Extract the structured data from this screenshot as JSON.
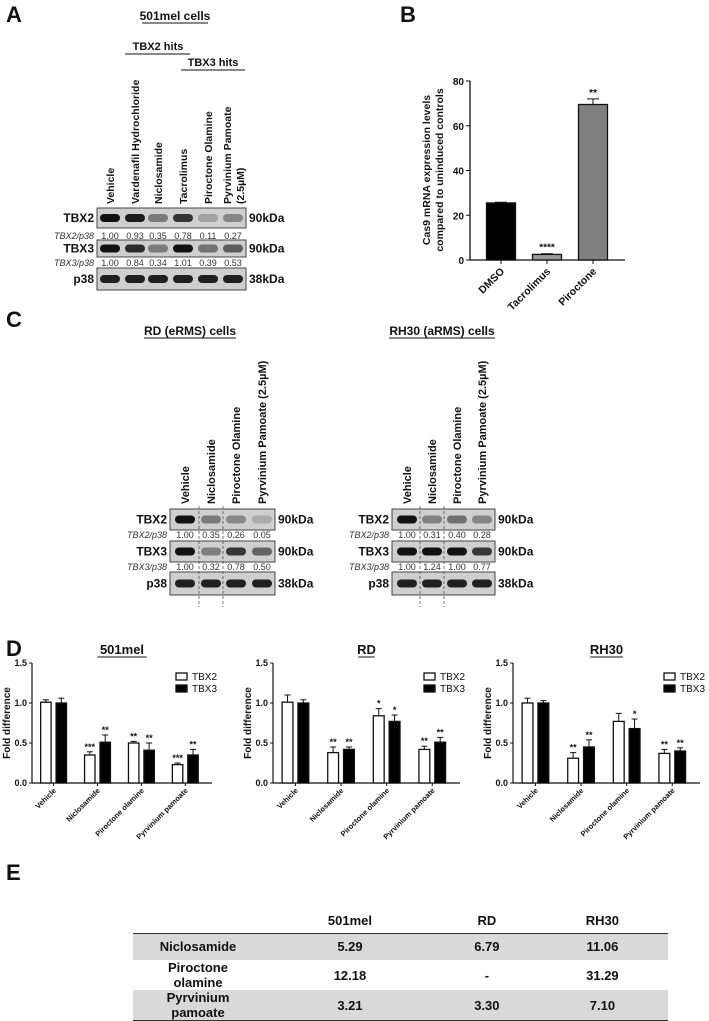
{
  "panel_labels": {
    "a": "A",
    "b": "B",
    "c": "C",
    "d": "D",
    "e": "E"
  },
  "panel_a": {
    "title": "501mel cells",
    "group_labels": [
      "TBX2 hits",
      "TBX3 hits"
    ],
    "lanes": [
      [
        "Vehicle"
      ],
      [
        "Vardenafil Hydrochloride"
      ],
      [
        "Niclosamide"
      ],
      [
        "Tacrolimus"
      ],
      [
        "Piroctone Olamine"
      ],
      [
        "Pyrvinium Pamoate",
        "(2.5µM)"
      ]
    ],
    "rows": [
      {
        "protein": "TBX2",
        "kda": "90kDa",
        "ratio_label": "TBX2/p38",
        "ratios": [
          "1.00",
          "0.93",
          "0.35",
          "0.78",
          "0.11",
          "0.27"
        ]
      },
      {
        "protein": "TBX3",
        "kda": "90kDa",
        "ratio_label": "TBX3/p38",
        "ratios": [
          "1.00",
          "0.84",
          "0.34",
          "1.01",
          "0.39",
          "0.53"
        ]
      },
      {
        "protein": "p38",
        "kda": "38kDa"
      }
    ]
  },
  "panel_c": {
    "blots": [
      {
        "title": "RD (eRMS) cells",
        "lanes": [
          [
            "Vehicle"
          ],
          [
            "Niclosamide"
          ],
          [
            "Piroctone Olamine"
          ],
          [
            "Pyrvinium Pamoate  (2.5µM)"
          ]
        ],
        "rows": [
          {
            "protein": "TBX2",
            "kda": "90kDa",
            "ratio_label": "TBX2/p38",
            "ratios": [
              "1.00",
              "0.35",
              "0.26",
              "0.05"
            ]
          },
          {
            "protein": "TBX3",
            "kda": "90kDa",
            "ratio_label": "TBX3/p38",
            "ratios": [
              "1.00",
              "0.32",
              "0.78",
              "0.50"
            ]
          },
          {
            "protein": "p38",
            "kda": "38kDa"
          }
        ]
      },
      {
        "title": "RH30 (aRMS) cells",
        "lanes": [
          [
            "Vehicle"
          ],
          [
            "Niclosamide"
          ],
          [
            "Piroctone Olamine"
          ],
          [
            "Pyrvinium Pamoate  (2.5µM)"
          ]
        ],
        "rows": [
          {
            "protein": "TBX2",
            "kda": "90kDa",
            "ratio_label": "TBX2/p38",
            "ratios": [
              "1.00",
              "0.31",
              "0.40",
              "0.28"
            ]
          },
          {
            "protein": "TBX3",
            "kda": "90kDa",
            "ratio_label": "TBX3/p38",
            "ratios": [
              "1.00",
              "1.24",
              "1.00",
              "0.77"
            ]
          },
          {
            "protein": "p38",
            "kda": "38kDa"
          }
        ]
      }
    ]
  },
  "chart_data": [
    {
      "panel": "B",
      "type": "bar",
      "title": "",
      "xlabel": "",
      "ylabel": [
        "Cas9 mRNA expression levels",
        "compared to uninduced controls"
      ],
      "categories": [
        "DMSO",
        "Tacrolimus",
        "Piroctone"
      ],
      "values": [
        25.5,
        2.5,
        69.5
      ],
      "errors": [
        0.3,
        0.3,
        2.5
      ],
      "significance": [
        "",
        "****",
        "**"
      ],
      "colors": [
        "#000000",
        "#9a9a9a",
        "#808080"
      ],
      "ylim": [
        0,
        80
      ],
      "yticks": [
        "0",
        "20",
        "40",
        "60",
        "80"
      ],
      "grid": false
    },
    {
      "panel": "D",
      "type": "bar",
      "title": "501mel",
      "ylabel": "Fold difference",
      "categories": [
        "Vehicle",
        "Niclosamide",
        "Piroctone olamine",
        "Pyrvinium pamoate"
      ],
      "ylim": [
        0,
        1.5
      ],
      "yticks": [
        "0.0",
        "0.5",
        "1.0",
        "1.5"
      ],
      "legend": "top-right",
      "grid": false,
      "series": [
        {
          "name": "TBX2",
          "color": "#ffffff",
          "values": [
            1.01,
            0.35,
            0.5,
            0.23
          ],
          "errors": [
            0.03,
            0.04,
            0.02,
            0.02
          ],
          "significance": [
            "",
            "***",
            "**",
            "***"
          ]
        },
        {
          "name": "TBX3",
          "color": "#000000",
          "values": [
            1.0,
            0.51,
            0.41,
            0.35
          ],
          "errors": [
            0.06,
            0.09,
            0.09,
            0.07
          ],
          "significance": [
            "",
            "**",
            "**",
            "**"
          ]
        }
      ]
    },
    {
      "panel": "D",
      "type": "bar",
      "title": "RD",
      "ylabel": "Fold difference",
      "categories": [
        "Vehicle",
        "Niclosamide",
        "Piroctone olamine",
        "Pyrvinium pamoate"
      ],
      "ylim": [
        0,
        1.5
      ],
      "yticks": [
        "0.0",
        "0.5",
        "1.0",
        "1.5"
      ],
      "legend": "top-right",
      "grid": false,
      "series": [
        {
          "name": "TBX2",
          "color": "#ffffff",
          "values": [
            1.01,
            0.38,
            0.84,
            0.42
          ],
          "errors": [
            0.09,
            0.07,
            0.09,
            0.04
          ],
          "significance": [
            "",
            "**",
            "*",
            "**"
          ]
        },
        {
          "name": "TBX3",
          "color": "#000000",
          "values": [
            1.0,
            0.42,
            0.77,
            0.51
          ],
          "errors": [
            0.04,
            0.03,
            0.08,
            0.06
          ],
          "significance": [
            "",
            "**",
            "*",
            "**"
          ]
        }
      ]
    },
    {
      "panel": "D",
      "type": "bar",
      "title": "RH30",
      "ylabel": "Fold difference",
      "categories": [
        "Vehicle",
        "Niclosamide",
        "Piroctone olamine",
        "Pyrvinium pamoate"
      ],
      "ylim": [
        0,
        1.5
      ],
      "yticks": [
        "0.0",
        "0.5",
        "1.0",
        "1.5"
      ],
      "legend": "top-right",
      "grid": false,
      "series": [
        {
          "name": "TBX2",
          "color": "#ffffff",
          "values": [
            1.0,
            0.31,
            0.77,
            0.37
          ],
          "errors": [
            0.06,
            0.07,
            0.1,
            0.05
          ],
          "significance": [
            "",
            "**",
            "",
            "**"
          ]
        },
        {
          "name": "TBX3",
          "color": "#000000",
          "values": [
            1.0,
            0.45,
            0.68,
            0.4
          ],
          "errors": [
            0.03,
            0.09,
            0.12,
            0.04
          ],
          "significance": [
            "",
            "**",
            "*",
            "**"
          ]
        }
      ]
    }
  ],
  "panel_e": {
    "columns": [
      "",
      "501mel",
      "RD",
      "RH30"
    ],
    "rows": [
      {
        "drug": "Niclosamide",
        "values": [
          "5.29",
          "6.79",
          "11.06"
        ]
      },
      {
        "drug": "Piroctone olamine",
        "values": [
          "12.18",
          "-",
          "31.29"
        ]
      },
      {
        "drug": "Pyrvinium pamoate",
        "values": [
          "3.21",
          "3.30",
          "7.10"
        ]
      }
    ]
  }
}
